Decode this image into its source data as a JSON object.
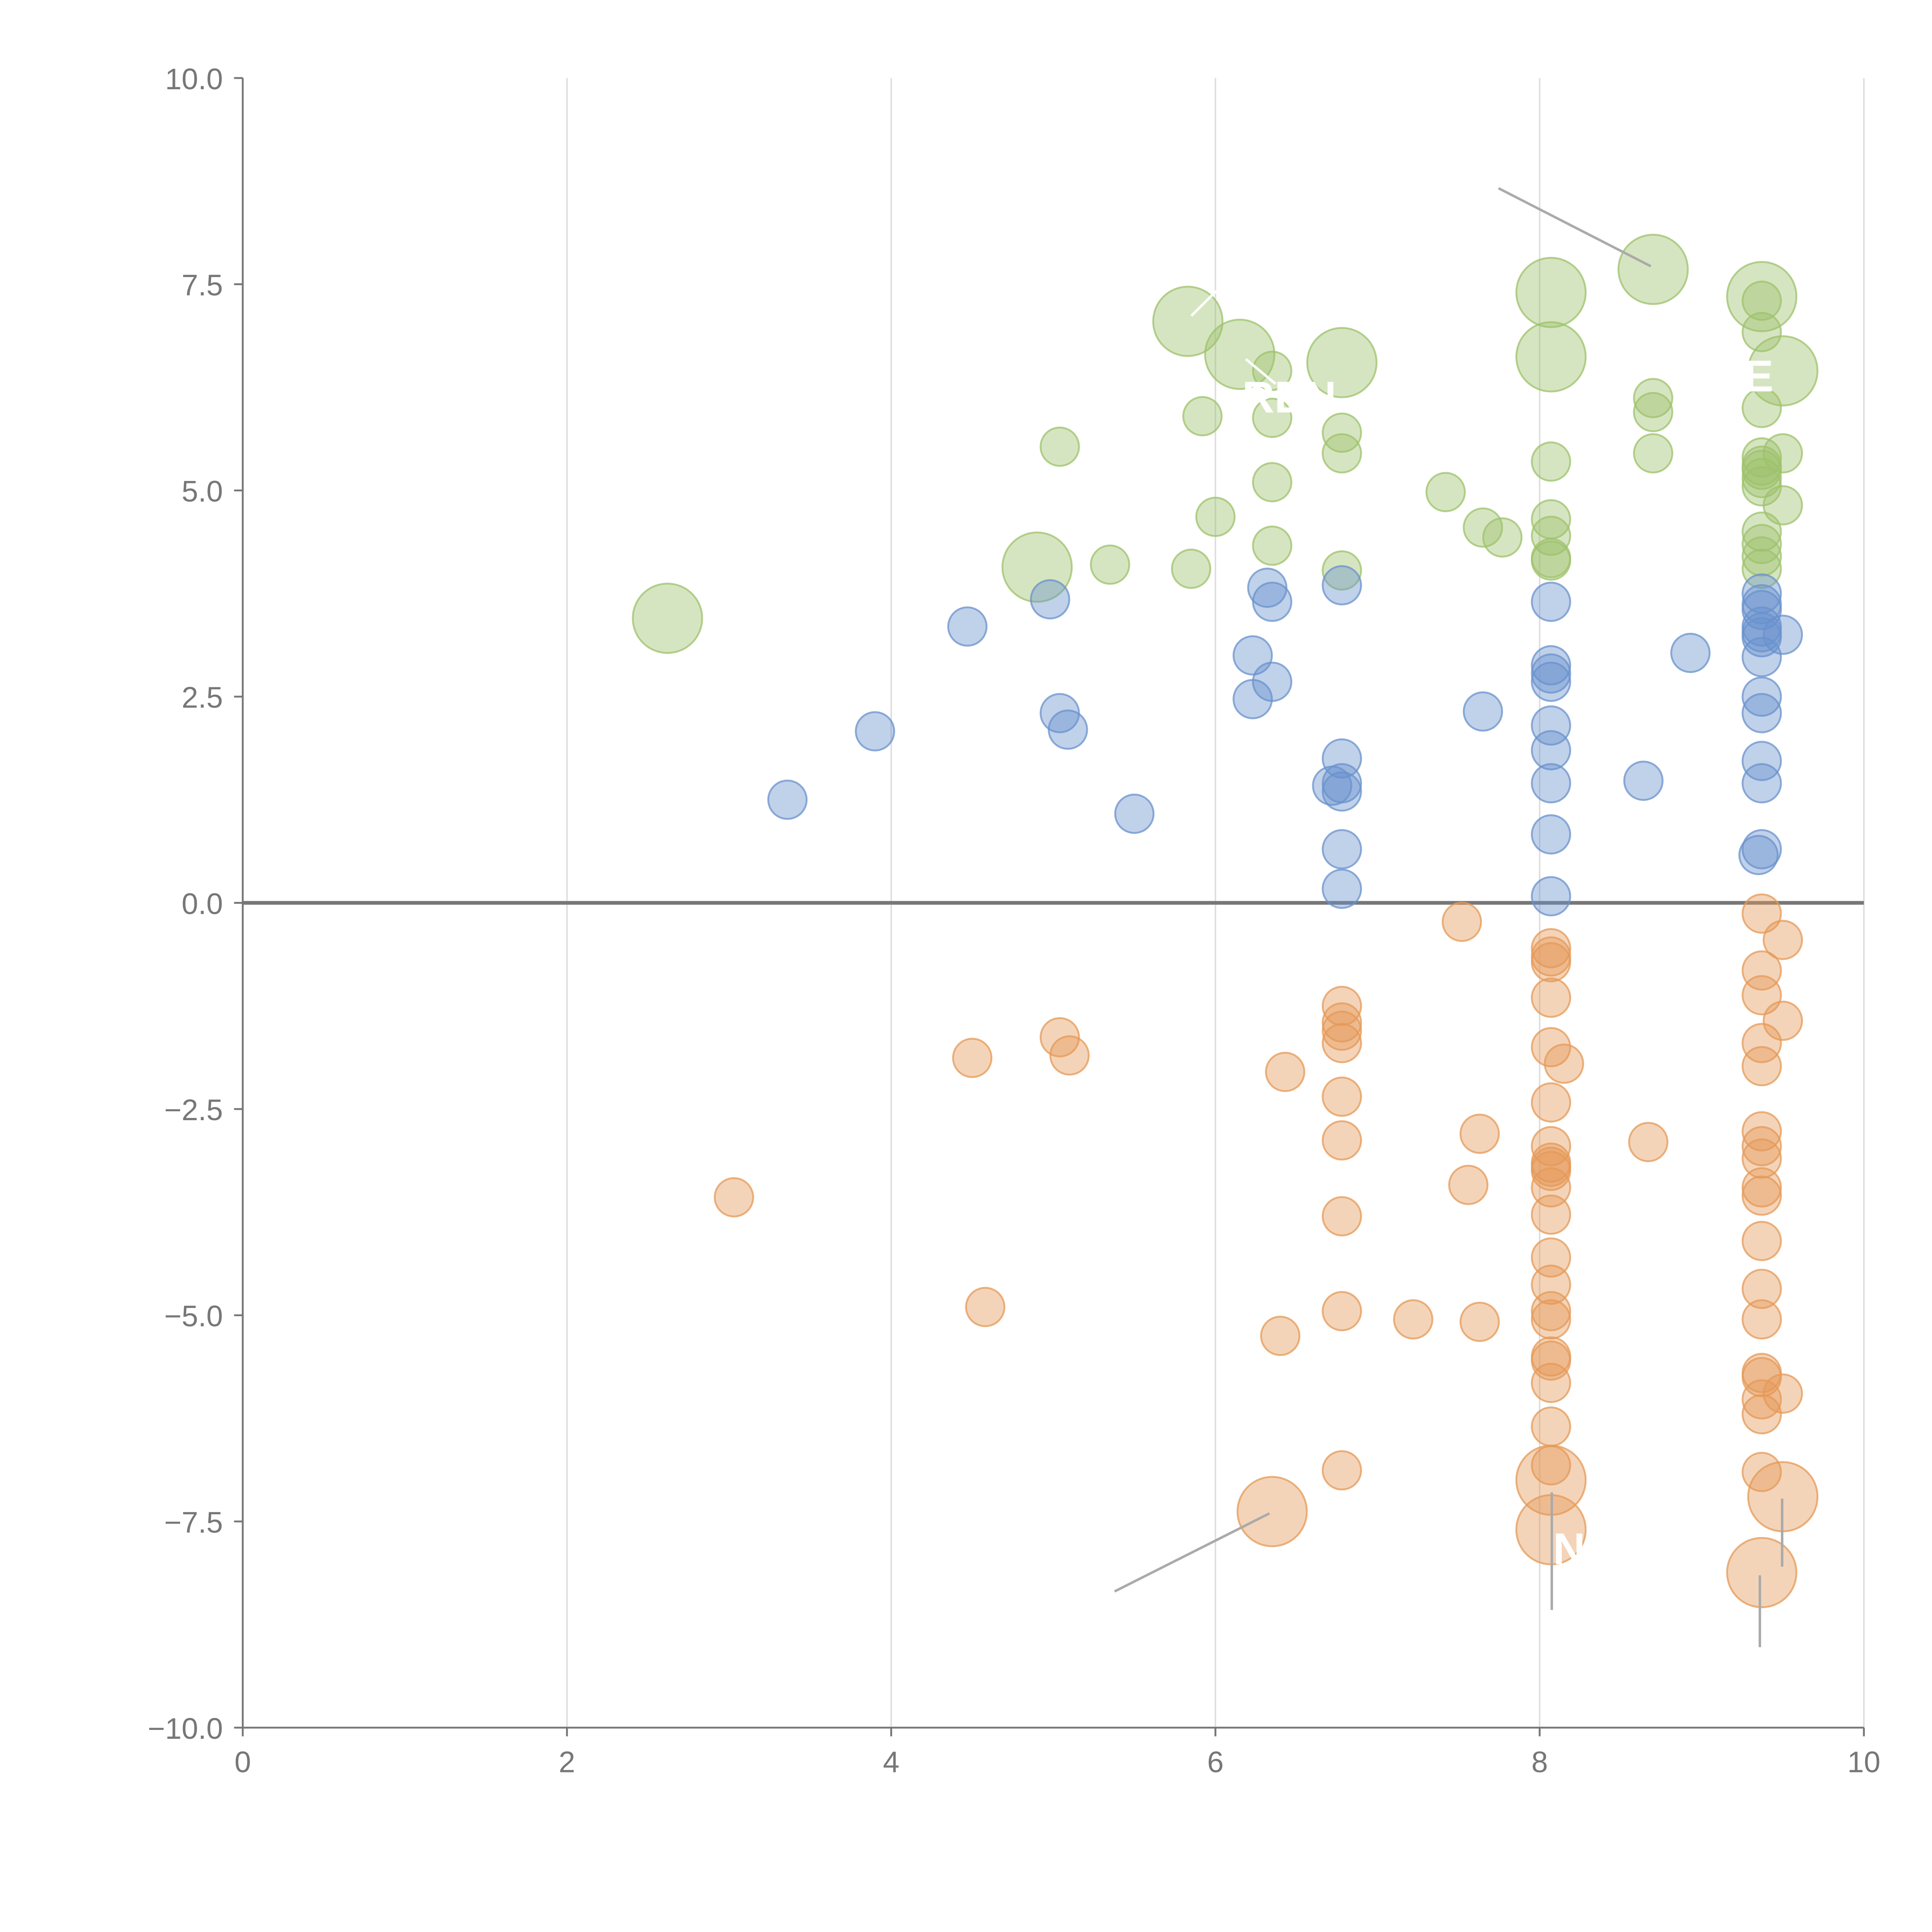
{
  "chart_data": {
    "type": "scatter",
    "title": "",
    "xlabel": "",
    "ylabel": "",
    "xlim": [
      0,
      10
    ],
    "ylim": [
      -10,
      10
    ],
    "x_ticks": [
      "0",
      "2",
      "4",
      "6",
      "8",
      "10"
    ],
    "y_ticks": [
      "−10.0",
      "−7.5",
      "−5.0",
      "−2.5",
      "0.0",
      "2.5",
      "5.0",
      "7.5",
      "10.0"
    ],
    "x_tick_values": [
      0,
      2,
      4,
      6,
      8,
      10
    ],
    "y_tick_values": [
      -10,
      -7.5,
      -5,
      -2.5,
      0,
      2.5,
      5,
      7.5,
      10
    ],
    "grid": "vertical",
    "zero_line": 0,
    "colors": {
      "green": "#9dc26b",
      "blue": "#6a91cc",
      "orange": "#e59957"
    },
    "series": [
      {
        "name": "green",
        "color": "#9dc26b",
        "points": [
          [
            2.62,
            3.45,
            3
          ],
          [
            4.9,
            4.07,
            3
          ],
          [
            5.83,
            7.05,
            3
          ],
          [
            6.15,
            6.65,
            3
          ],
          [
            6.78,
            6.55,
            3
          ],
          [
            8.07,
            7.4,
            3
          ],
          [
            8.07,
            6.62,
            3
          ],
          [
            8.7,
            7.68,
            3
          ],
          [
            9.37,
            7.35,
            3
          ],
          [
            9.5,
            6.45,
            3
          ],
          [
            5.04,
            5.53,
            1
          ],
          [
            5.35,
            4.1,
            1
          ],
          [
            5.85,
            4.05,
            1
          ],
          [
            5.92,
            5.9,
            1
          ],
          [
            6.0,
            4.68,
            1
          ],
          [
            6.35,
            5.88,
            1
          ],
          [
            6.35,
            5.1,
            1
          ],
          [
            6.35,
            4.33,
            1
          ],
          [
            6.35,
            6.45,
            1
          ],
          [
            6.78,
            5.7,
            1
          ],
          [
            6.78,
            5.45,
            1
          ],
          [
            6.78,
            4.03,
            1
          ],
          [
            7.42,
            4.98,
            1
          ],
          [
            7.65,
            4.55,
            1
          ],
          [
            7.77,
            4.43,
            1
          ],
          [
            8.07,
            5.35,
            1
          ],
          [
            8.07,
            4.65,
            1
          ],
          [
            8.07,
            4.45,
            1
          ],
          [
            8.07,
            4.18,
            1
          ],
          [
            8.07,
            4.15,
            1
          ],
          [
            8.7,
            6.12,
            1
          ],
          [
            8.7,
            5.95,
            1
          ],
          [
            8.7,
            5.45,
            1
          ],
          [
            9.37,
            7.3,
            1
          ],
          [
            9.37,
            6.92,
            1
          ],
          [
            9.37,
            6.0,
            1
          ],
          [
            9.37,
            5.4,
            1
          ],
          [
            9.37,
            5.3,
            1
          ],
          [
            9.37,
            5.25,
            1
          ],
          [
            9.37,
            5.15,
            1
          ],
          [
            9.37,
            5.05,
            1
          ],
          [
            9.37,
            4.5,
            1
          ],
          [
            9.37,
            4.35,
            1
          ],
          [
            9.37,
            4.2,
            1
          ],
          [
            9.37,
            4.05,
            1
          ],
          [
            9.5,
            5.45,
            1
          ],
          [
            9.5,
            4.82,
            1
          ]
        ]
      },
      {
        "name": "blue",
        "color": "#6a91cc",
        "points": [
          [
            3.36,
            1.25,
            1
          ],
          [
            3.9,
            2.08,
            1
          ],
          [
            4.47,
            3.35,
            1
          ],
          [
            4.98,
            3.68,
            1
          ],
          [
            5.04,
            2.3,
            1
          ],
          [
            5.09,
            2.1,
            1
          ],
          [
            5.5,
            1.08,
            1
          ],
          [
            6.23,
            3.0,
            1
          ],
          [
            6.23,
            2.47,
            1
          ],
          [
            6.32,
            3.82,
            1
          ],
          [
            6.35,
            3.65,
            1
          ],
          [
            6.35,
            2.68,
            1
          ],
          [
            6.72,
            1.42,
            1
          ],
          [
            6.78,
            3.85,
            1
          ],
          [
            6.78,
            1.75,
            1
          ],
          [
            6.78,
            1.45,
            1
          ],
          [
            6.78,
            1.35,
            1
          ],
          [
            6.78,
            0.65,
            1
          ],
          [
            6.78,
            0.17,
            1
          ],
          [
            7.65,
            2.32,
            1
          ],
          [
            8.07,
            3.65,
            1
          ],
          [
            8.07,
            2.88,
            1
          ],
          [
            8.07,
            2.78,
            1
          ],
          [
            8.07,
            2.68,
            1
          ],
          [
            8.07,
            2.15,
            1
          ],
          [
            8.07,
            1.85,
            1
          ],
          [
            8.07,
            1.45,
            1
          ],
          [
            8.07,
            0.83,
            1
          ],
          [
            8.07,
            0.08,
            1
          ],
          [
            8.64,
            1.48,
            1
          ],
          [
            8.93,
            3.03,
            1
          ],
          [
            9.37,
            3.75,
            1
          ],
          [
            9.37,
            3.62,
            1
          ],
          [
            9.37,
            3.55,
            1
          ],
          [
            9.37,
            3.35,
            1
          ],
          [
            9.37,
            3.28,
            1
          ],
          [
            9.37,
            3.22,
            1
          ],
          [
            9.37,
            2.98,
            1
          ],
          [
            9.37,
            2.5,
            1
          ],
          [
            9.37,
            2.3,
            1
          ],
          [
            9.37,
            1.72,
            1
          ],
          [
            9.37,
            1.45,
            1
          ],
          [
            9.37,
            0.65,
            1
          ],
          [
            9.35,
            0.58,
            1
          ],
          [
            9.5,
            3.25,
            1
          ]
        ]
      },
      {
        "name": "orange",
        "color": "#e59957",
        "points": [
          [
            3.03,
            -3.57,
            1
          ],
          [
            4.5,
            -1.88,
            1
          ],
          [
            4.58,
            -4.9,
            1
          ],
          [
            5.04,
            -1.63,
            1
          ],
          [
            5.1,
            -1.85,
            1
          ],
          [
            6.4,
            -5.25,
            1
          ],
          [
            6.43,
            -2.05,
            1
          ],
          [
            6.35,
            -7.38,
            3
          ],
          [
            6.78,
            -1.25,
            1
          ],
          [
            6.78,
            -1.45,
            1
          ],
          [
            6.78,
            -1.55,
            1
          ],
          [
            6.78,
            -1.7,
            1
          ],
          [
            6.78,
            -2.35,
            1
          ],
          [
            6.78,
            -2.88,
            1
          ],
          [
            6.78,
            -3.8,
            1
          ],
          [
            6.78,
            -4.95,
            1
          ],
          [
            6.78,
            -6.88,
            1
          ],
          [
            7.22,
            -5.05,
            1
          ],
          [
            7.52,
            -0.23,
            1
          ],
          [
            7.56,
            -3.42,
            1
          ],
          [
            7.63,
            -2.8,
            1
          ],
          [
            7.63,
            -5.08,
            1
          ],
          [
            8.07,
            -0.55,
            1
          ],
          [
            8.07,
            -0.65,
            1
          ],
          [
            8.07,
            -0.72,
            1
          ],
          [
            8.07,
            -1.15,
            1
          ],
          [
            8.07,
            -1.75,
            1
          ],
          [
            8.15,
            -1.95,
            1
          ],
          [
            8.07,
            -2.42,
            1
          ],
          [
            8.07,
            -2.95,
            1
          ],
          [
            8.07,
            -3.15,
            1
          ],
          [
            8.07,
            -3.2,
            1
          ],
          [
            8.07,
            -3.25,
            1
          ],
          [
            8.07,
            -3.45,
            1
          ],
          [
            8.07,
            -3.78,
            1
          ],
          [
            8.07,
            -4.3,
            1
          ],
          [
            8.07,
            -4.63,
            1
          ],
          [
            8.07,
            -4.95,
            1
          ],
          [
            8.07,
            -5.05,
            1
          ],
          [
            8.07,
            -5.5,
            1
          ],
          [
            8.07,
            -5.55,
            1
          ],
          [
            8.07,
            -5.82,
            1
          ],
          [
            8.07,
            -6.35,
            1
          ],
          [
            8.07,
            -6.82,
            1
          ],
          [
            8.07,
            -7.0,
            3
          ],
          [
            8.07,
            -7.6,
            3
          ],
          [
            8.67,
            -2.9,
            1
          ],
          [
            9.37,
            -0.13,
            1
          ],
          [
            9.37,
            -0.82,
            1
          ],
          [
            9.37,
            -1.12,
            1
          ],
          [
            9.37,
            -1.7,
            1
          ],
          [
            9.37,
            -1.98,
            1
          ],
          [
            9.37,
            -2.77,
            1
          ],
          [
            9.37,
            -2.95,
            1
          ],
          [
            9.37,
            -3.1,
            1
          ],
          [
            9.37,
            -3.45,
            1
          ],
          [
            9.37,
            -3.55,
            1
          ],
          [
            9.37,
            -4.1,
            1
          ],
          [
            9.37,
            -4.68,
            1
          ],
          [
            9.37,
            -5.05,
            1
          ],
          [
            9.37,
            -5.7,
            1
          ],
          [
            9.37,
            -5.75,
            1
          ],
          [
            9.37,
            -6.02,
            1
          ],
          [
            9.37,
            -6.2,
            1
          ],
          [
            9.37,
            -6.9,
            1
          ],
          [
            9.37,
            -8.12,
            3
          ],
          [
            9.5,
            -0.45,
            1
          ],
          [
            9.5,
            -1.43,
            1
          ],
          [
            9.5,
            -5.95,
            1
          ],
          [
            9.5,
            -7.2,
            3
          ]
        ]
      }
    ],
    "annotations": [
      {
        "text": "REN",
        "x": 6.35,
        "y": 6.1
      },
      {
        "text": "E",
        "x": 9.37,
        "y": 6.3
      },
      {
        "text": "N",
        "x": 8.18,
        "y": -7.85
      }
    ]
  }
}
